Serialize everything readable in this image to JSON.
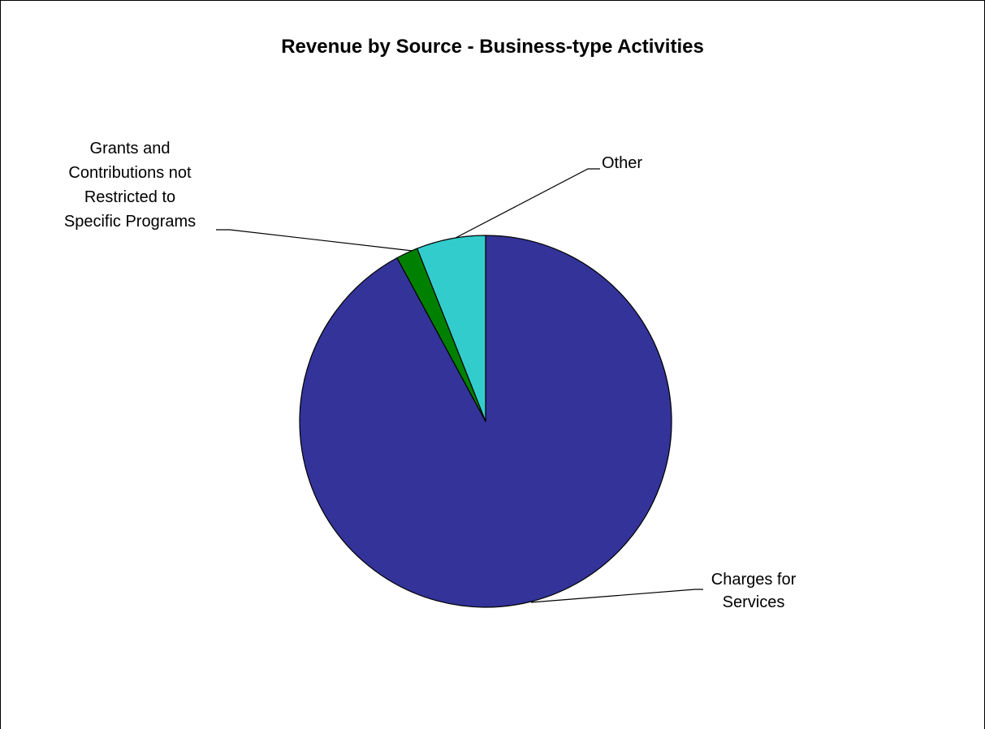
{
  "chart_data": {
    "type": "pie",
    "title": "Revenue by Source - Business-type Activities",
    "start_angle": "12 o'clock",
    "direction": "clockwise",
    "legend": "none",
    "slices": [
      {
        "label": "Charges for Services",
        "label_lines": [
          "Charges for",
          "Services"
        ],
        "value": 92.1,
        "color": "#333399"
      },
      {
        "label": "Grants and Contributions not Restricted to Specific Programs",
        "label_lines": [
          "Grants and",
          "Contributions not",
          "Restricted to",
          "Specific Programs"
        ],
        "value": 1.9,
        "color": "#008000"
      },
      {
        "label": "Other",
        "label_lines": [
          "Other"
        ],
        "value": 6.0,
        "color": "#33CCCC"
      }
    ]
  }
}
